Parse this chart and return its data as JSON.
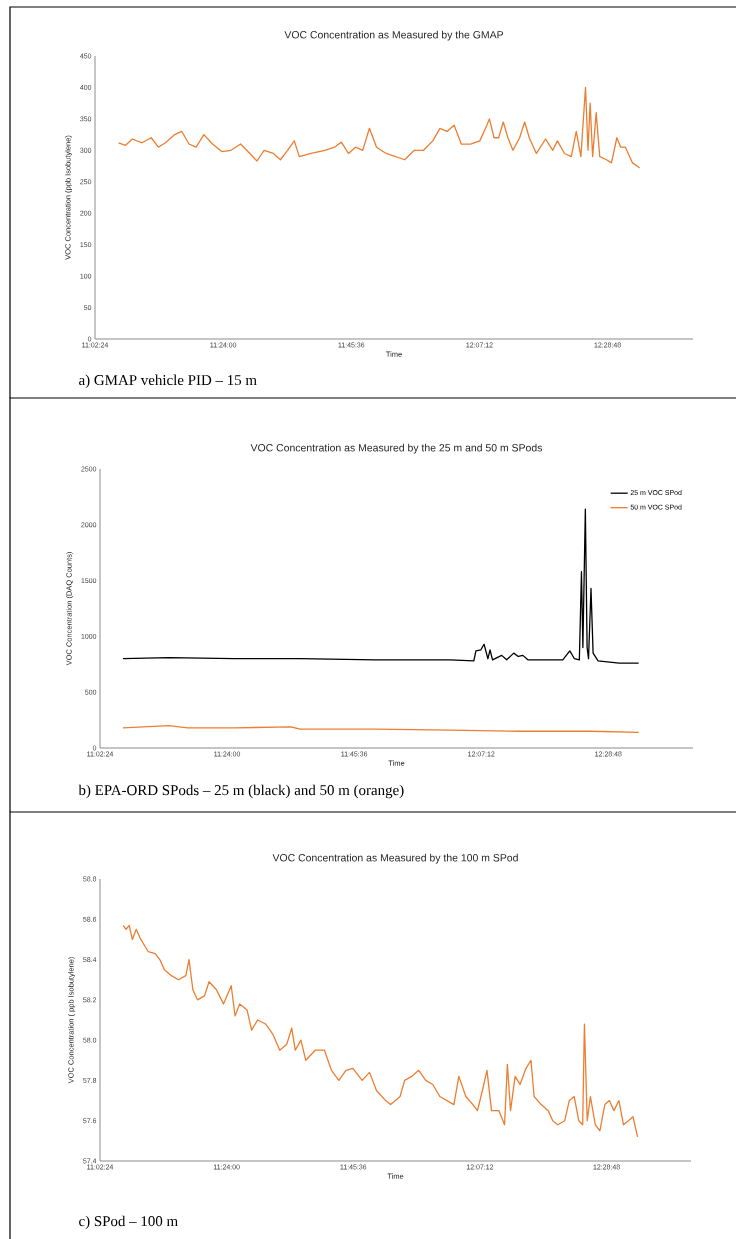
{
  "chart_data": [
    {
      "type": "line",
      "title": "VOC Concentration as Measured by the GMAP",
      "xlabel": "Time",
      "ylabel": "VOC Concentration (ppb Isobutylene)",
      "xlim": [
        11.04,
        12.72
      ],
      "ylim": [
        0,
        450
      ],
      "xticks": [
        {
          "value": 11.04,
          "label": "11:02:24"
        },
        {
          "value": 11.4,
          "label": "11:24:00"
        },
        {
          "value": 11.76,
          "label": "11:45:36"
        },
        {
          "value": 12.12,
          "label": "12:07:12"
        },
        {
          "value": 12.48,
          "label": "12:28:48"
        }
      ],
      "yticks": [
        0,
        50,
        100,
        150,
        200,
        250,
        300,
        350,
        400,
        450
      ],
      "annotations": [
        "a) GMAP vehicle PID – 15 m"
      ],
      "series": [
        {
          "color": "#ed7d31",
          "x": [
            11.106,
            11.126,
            11.145,
            11.172,
            11.198,
            11.218,
            11.238,
            11.264,
            11.284,
            11.304,
            11.324,
            11.346,
            11.37,
            11.396,
            11.422,
            11.449,
            11.475,
            11.495,
            11.515,
            11.541,
            11.561,
            11.581,
            11.6,
            11.614,
            11.647,
            11.686,
            11.713,
            11.732,
            11.752,
            11.772,
            11.792,
            11.811,
            11.831,
            11.858,
            11.884,
            11.91,
            11.937,
            11.963,
            11.989,
            12.009,
            12.029,
            12.049,
            12.069,
            12.095,
            12.121,
            12.141,
            12.148,
            12.161,
            12.174,
            12.187,
            12.2,
            12.214,
            12.233,
            12.247,
            12.26,
            12.28,
            12.306,
            12.326,
            12.339,
            12.359,
            12.378,
            12.392,
            12.405,
            12.418,
            12.425,
            12.431,
            12.438,
            12.448,
            12.458,
            12.477,
            12.491,
            12.506,
            12.517,
            12.53,
            12.55,
            12.563,
            12.57
          ],
          "values": [
            312,
            308,
            318,
            312,
            320,
            305,
            312,
            325,
            330,
            310,
            305,
            325,
            310,
            298,
            300,
            310,
            295,
            283,
            300,
            295,
            285,
            300,
            315,
            290,
            295,
            300,
            305,
            313,
            295,
            305,
            300,
            335,
            305,
            295,
            290,
            285,
            300,
            300,
            315,
            335,
            330,
            340,
            310,
            310,
            315,
            340,
            350,
            320,
            320,
            345,
            320,
            300,
            320,
            345,
            320,
            295,
            318,
            300,
            315,
            295,
            290,
            330,
            290,
            400,
            300,
            375,
            290,
            360,
            290,
            285,
            280,
            320,
            305,
            305,
            280,
            275,
            272
          ]
        }
      ]
    },
    {
      "type": "line",
      "title": "VOC Concentration as Measured by the 25 m and 50 m SPods",
      "xlabel": "Time",
      "ylabel": "VOC Concentration (DAQ Counts)",
      "xlim": [
        11.04,
        12.72
      ],
      "ylim": [
        0,
        2500
      ],
      "legend": "top right",
      "xticks": [
        {
          "value": 11.04,
          "label": "11:02:24"
        },
        {
          "value": 11.4,
          "label": "11:24:00"
        },
        {
          "value": 11.76,
          "label": "11:45:36"
        },
        {
          "value": 12.12,
          "label": "12:07:12"
        },
        {
          "value": 12.48,
          "label": "12:28:48"
        }
      ],
      "yticks": [
        0,
        500,
        1000,
        1500,
        2000,
        2500
      ],
      "annotations": [
        "b) EPA-ORD SPods – 25 m (black) and 50 m (orange)"
      ],
      "series": [
        {
          "name": "25 m VOC SPod",
          "color": "#000000",
          "x": [
            11.105,
            11.235,
            11.421,
            11.607,
            11.82,
            12.032,
            12.099,
            12.105,
            12.119,
            12.128,
            12.139,
            12.145,
            12.152,
            12.178,
            12.192,
            12.212,
            12.225,
            12.238,
            12.252,
            12.271,
            12.351,
            12.371,
            12.384,
            12.398,
            12.404,
            12.408,
            12.415,
            12.42,
            12.424,
            12.431,
            12.437,
            12.451,
            12.484,
            12.511,
            12.566
          ],
          "values": [
            800,
            810,
            800,
            800,
            790,
            790,
            780,
            870,
            880,
            930,
            800,
            880,
            790,
            830,
            790,
            850,
            820,
            830,
            790,
            790,
            790,
            870,
            800,
            790,
            1580,
            900,
            2140,
            900,
            800,
            1430,
            850,
            780,
            770,
            760,
            760
          ]
        },
        {
          "name": "50 m VOC SPod",
          "color": "#ed7d31",
          "x": [
            11.105,
            11.235,
            11.288,
            11.421,
            11.581,
            11.607,
            11.82,
            12.032,
            12.225,
            12.431,
            12.566
          ],
          "values": [
            180,
            200,
            180,
            180,
            190,
            170,
            170,
            160,
            150,
            150,
            140
          ]
        }
      ]
    },
    {
      "type": "line",
      "title": "VOC Concentration as Measured by the 100 m SPod",
      "xlabel": "Time",
      "ylabel": "VOC Concentration ( ppb Isobutylene)",
      "xlim": [
        11.04,
        12.72
      ],
      "ylim": [
        57.4,
        58.8
      ],
      "xticks": [
        {
          "value": 11.04,
          "label": "11:02:24"
        },
        {
          "value": 11.4,
          "label": "11:24:00"
        },
        {
          "value": 11.76,
          "label": "11:45:36"
        },
        {
          "value": 12.12,
          "label": "12:07:12"
        },
        {
          "value": 12.48,
          "label": "12:28:48"
        }
      ],
      "yticks": [
        57.4,
        57.6,
        57.8,
        {
          "value": 58,
          "label": "58.0"
        },
        58.2,
        58.4,
        58.6,
        58.8
      ],
      "annotations": [
        "c) SPod – 100 m"
      ],
      "series": [
        {
          "color": "#ed7d31",
          "x": [
            11.106,
            11.114,
            11.123,
            11.132,
            11.143,
            11.156,
            11.177,
            11.197,
            11.21,
            11.223,
            11.243,
            11.263,
            11.284,
            11.293,
            11.304,
            11.317,
            11.337,
            11.35,
            11.371,
            11.391,
            11.413,
            11.424,
            11.437,
            11.458,
            11.471,
            11.488,
            11.511,
            11.531,
            11.551,
            11.571,
            11.585,
            11.595,
            11.611,
            11.625,
            11.652,
            11.678,
            11.698,
            11.719,
            11.739,
            11.759,
            11.785,
            11.806,
            11.826,
            11.852,
            11.866,
            11.893,
            11.906,
            11.926,
            11.946,
            11.966,
            11.986,
            12.006,
            12.026,
            12.046,
            12.06,
            12.08,
            12.1,
            12.113,
            12.127,
            12.14,
            12.153,
            12.174,
            12.19,
            12.198,
            12.207,
            12.22,
            12.234,
            12.251,
            12.265,
            12.274,
            12.294,
            12.314,
            12.327,
            12.341,
            12.361,
            12.374,
            12.388,
            12.401,
            12.412,
            12.417,
            12.425,
            12.434,
            12.448,
            12.461,
            12.475,
            12.488,
            12.501,
            12.515,
            12.528,
            12.542,
            12.555,
            12.568
          ],
          "values": [
            58.57,
            58.55,
            58.57,
            58.5,
            58.55,
            58.5,
            58.44,
            58.43,
            58.4,
            58.35,
            58.32,
            58.3,
            58.32,
            58.4,
            58.25,
            58.2,
            58.22,
            58.29,
            58.25,
            58.18,
            58.27,
            58.12,
            58.18,
            58.15,
            58.05,
            58.1,
            58.08,
            58.03,
            57.95,
            57.98,
            58.06,
            57.95,
            58.0,
            57.9,
            57.95,
            57.95,
            57.85,
            57.8,
            57.85,
            57.86,
            57.8,
            57.84,
            57.75,
            57.7,
            57.68,
            57.72,
            57.8,
            57.82,
            57.85,
            57.8,
            57.78,
            57.72,
            57.7,
            57.68,
            57.82,
            57.72,
            57.68,
            57.65,
            57.75,
            57.85,
            57.65,
            57.65,
            57.58,
            57.88,
            57.65,
            57.82,
            57.78,
            57.86,
            57.9,
            57.72,
            57.68,
            57.65,
            57.6,
            57.58,
            57.6,
            57.7,
            57.72,
            57.6,
            57.58,
            58.08,
            57.6,
            57.72,
            57.58,
            57.55,
            57.68,
            57.7,
            57.65,
            57.7,
            57.58,
            57.6,
            57.62,
            57.52
          ]
        }
      ]
    }
  ]
}
